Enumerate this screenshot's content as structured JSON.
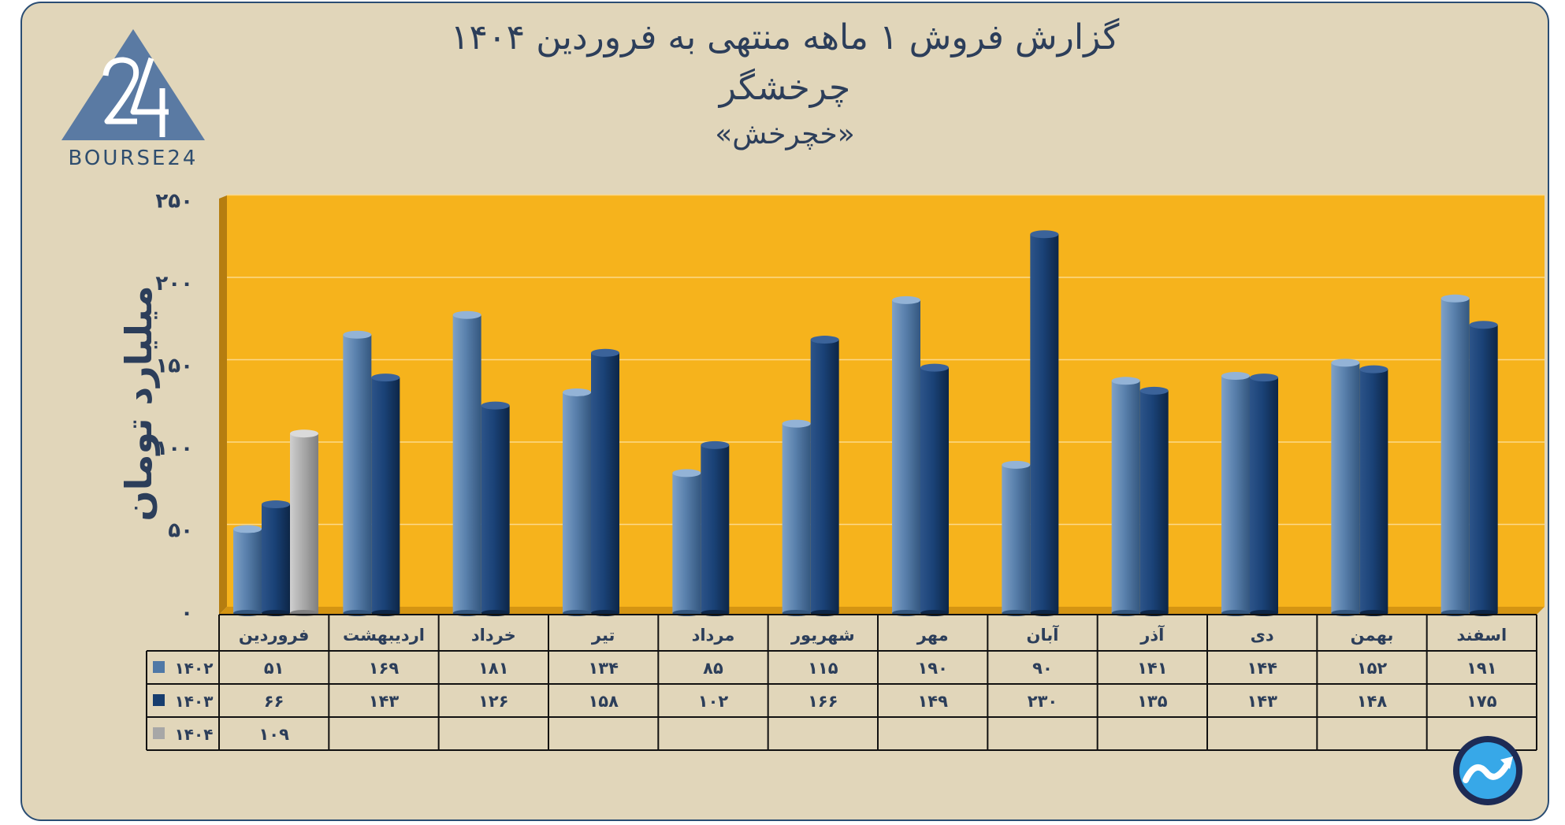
{
  "title_line1": "گزارش  فروش ۱ ماهه منتهی به فروردین ۱۴۰۴",
  "title_line2": "چرخشگر",
  "title_line3": "«خچرخش»",
  "logo": {
    "text": "BOURSE24"
  },
  "colors": {
    "background": "#e1d6ba",
    "plot_area": "#f6b31c",
    "series_1402": "#4f78a6",
    "series_1403": "#173d6e",
    "series_1404": "#a7a7a7",
    "text": "#2c3e5a"
  },
  "chart_data": {
    "type": "bar",
    "categories": [
      "فروردین",
      "اردیبهشت",
      "خرداد",
      "تیر",
      "مرداد",
      "شهریور",
      "مهر",
      "آبان",
      "آذر",
      "دی",
      "بهمن",
      "اسفند"
    ],
    "series": [
      {
        "name": "۱۴۰۲",
        "values": [
          51,
          169,
          181,
          134,
          85,
          115,
          190,
          90,
          141,
          144,
          152,
          191
        ],
        "labels": [
          "۵۱",
          "۱۶۹",
          "۱۸۱",
          "۱۳۴",
          "۸۵",
          "۱۱۵",
          "۱۹۰",
          "۹۰",
          "۱۴۱",
          "۱۴۴",
          "۱۵۲",
          "۱۹۱"
        ]
      },
      {
        "name": "۱۴۰۳",
        "values": [
          66,
          143,
          126,
          158,
          102,
          166,
          149,
          230,
          135,
          143,
          148,
          175
        ],
        "labels": [
          "۶۶",
          "۱۴۳",
          "۱۲۶",
          "۱۵۸",
          "۱۰۲",
          "۱۶۶",
          "۱۴۹",
          "۲۳۰",
          "۱۳۵",
          "۱۴۳",
          "۱۴۸",
          "۱۷۵"
        ]
      },
      {
        "name": "۱۴۰۴",
        "values": [
          109,
          null,
          null,
          null,
          null,
          null,
          null,
          null,
          null,
          null,
          null,
          null
        ],
        "labels": [
          "۱۰۹",
          "",
          "",
          "",
          "",
          "",
          "",
          "",
          "",
          "",
          "",
          ""
        ]
      }
    ],
    "ylabel": "میلیارد تومان",
    "ylim": [
      0,
      250
    ],
    "yticks": [
      0,
      50,
      100,
      150,
      200,
      250
    ],
    "ytick_labels": [
      "۰",
      "۵۰",
      "۱۰۰",
      "۱۵۰",
      "۲۰۰",
      "۲۵۰"
    ],
    "grid": true,
    "legend": "data-table-bottom"
  }
}
